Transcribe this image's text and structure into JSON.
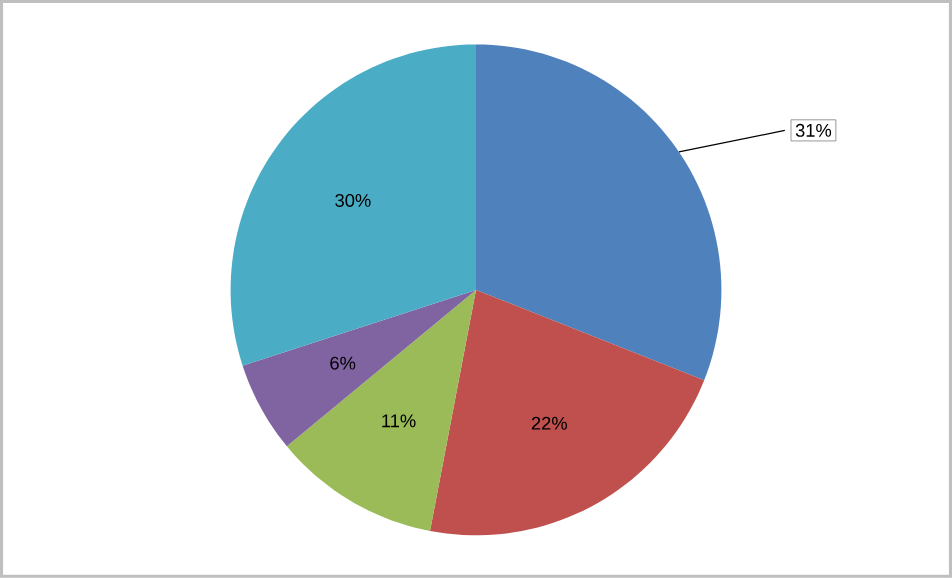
{
  "chart_data": {
    "type": "pie",
    "categories": [
      null,
      null,
      null,
      null,
      null
    ],
    "values": [
      31,
      22,
      11,
      6,
      30
    ],
    "colors": [
      "#4f81bd",
      "#c0504d",
      "#9bbb59",
      "#8064a2",
      "#4bacc6"
    ],
    "value_labels": [
      "31%",
      "22%",
      "11%",
      "6%",
      "30%"
    ],
    "legend": false
  }
}
